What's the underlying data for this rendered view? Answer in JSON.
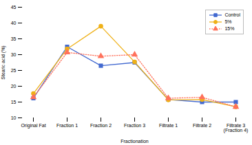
{
  "chart_data": {
    "type": "line",
    "xlabel": "Fractionation",
    "ylabel": "Stearic acid (%)",
    "categories": [
      "Original Fat",
      "Fraction 1",
      "Fraction 2",
      "Fraction 3",
      "Filtrate 1",
      "Filtrate 2",
      "Filtrate 3\n(Fraction 4)"
    ],
    "series": [
      {
        "name": "Control",
        "values": [
          16.2,
          32.5,
          26.5,
          27.5,
          15.8,
          15.0,
          15.0
        ],
        "marker": "square",
        "line_style": "solid"
      },
      {
        "name": "5%",
        "values": [
          17.7,
          31.8,
          39.0,
          27.7,
          15.7,
          15.8,
          13.5
        ],
        "marker": "circle",
        "line_style": "solid"
      },
      {
        "name": "15%",
        "values": [
          16.5,
          30.7,
          29.5,
          30.0,
          16.2,
          16.5,
          13.5
        ],
        "marker": "triangle",
        "line_style": "dotted"
      }
    ],
    "ylim": [
      10,
      45
    ],
    "yticks": [
      10,
      15,
      20,
      25,
      30,
      35,
      40,
      45
    ],
    "grid": false,
    "legend": "upper right"
  }
}
